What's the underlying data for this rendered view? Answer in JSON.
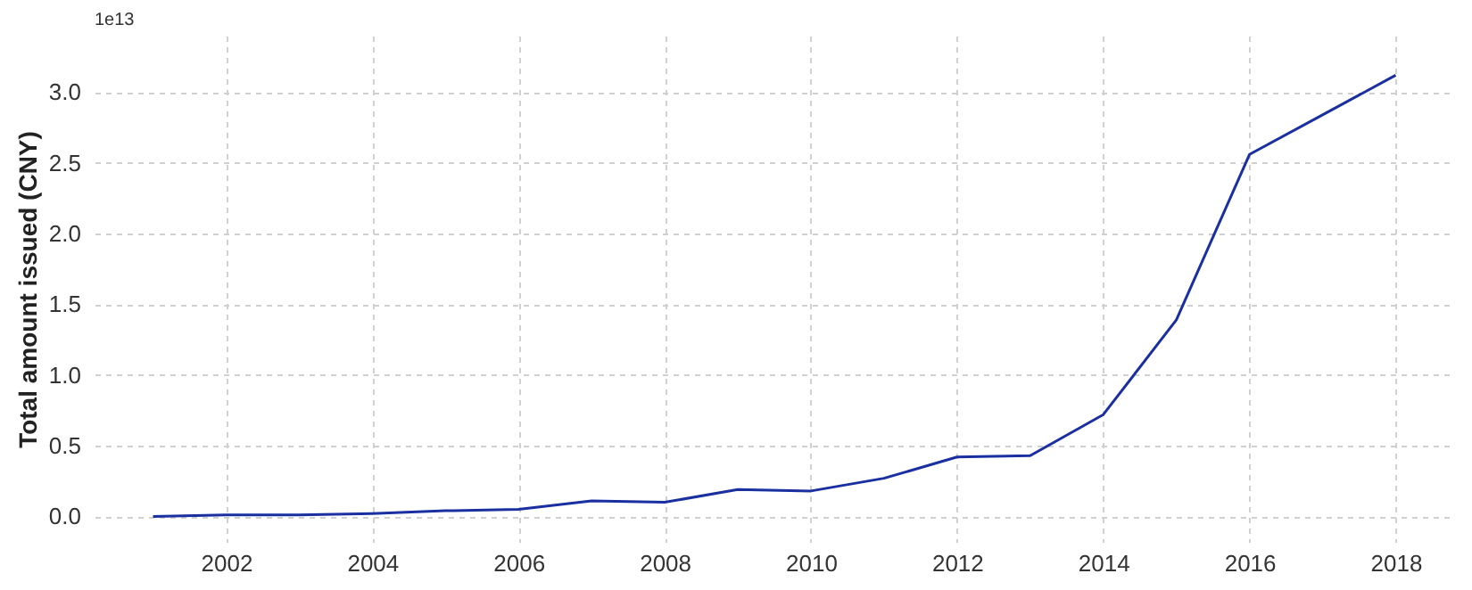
{
  "chart_data": {
    "type": "line",
    "ylabel": "Total amount issued (CNY)",
    "annotations": [
      "1e13"
    ],
    "x": [
      2001,
      2002,
      2003,
      2004,
      2005,
      2006,
      2007,
      2008,
      2009,
      2010,
      2011,
      2012,
      2013,
      2014,
      2015,
      2016,
      2017,
      2018
    ],
    "series": [
      {
        "color": "#1a2fa0",
        "values": [
          0.0,
          0.01,
          0.01,
          0.02,
          0.04,
          0.05,
          0.11,
          0.1,
          0.19,
          0.18,
          0.27,
          0.42,
          0.43,
          0.72,
          1.39,
          2.56,
          2.84,
          3.12
        ]
      }
    ],
    "xlim": [
      2000.2,
      2018.8
    ],
    "xticks": [
      2002,
      2004,
      2006,
      2008,
      2010,
      2012,
      2014,
      2016,
      2018
    ],
    "ylim": [
      -0.18,
      3.4
    ],
    "yticks": [
      {
        "value": 0,
        "label": "0.0"
      },
      0.5,
      {
        "value": 1,
        "label": "1.0"
      },
      1.5,
      {
        "value": 2,
        "label": "2.0"
      },
      2.5,
      {
        "value": 3,
        "label": "3.0"
      }
    ],
    "grid": true,
    "line_style": "solid",
    "marker": "none",
    "legend": false
  }
}
